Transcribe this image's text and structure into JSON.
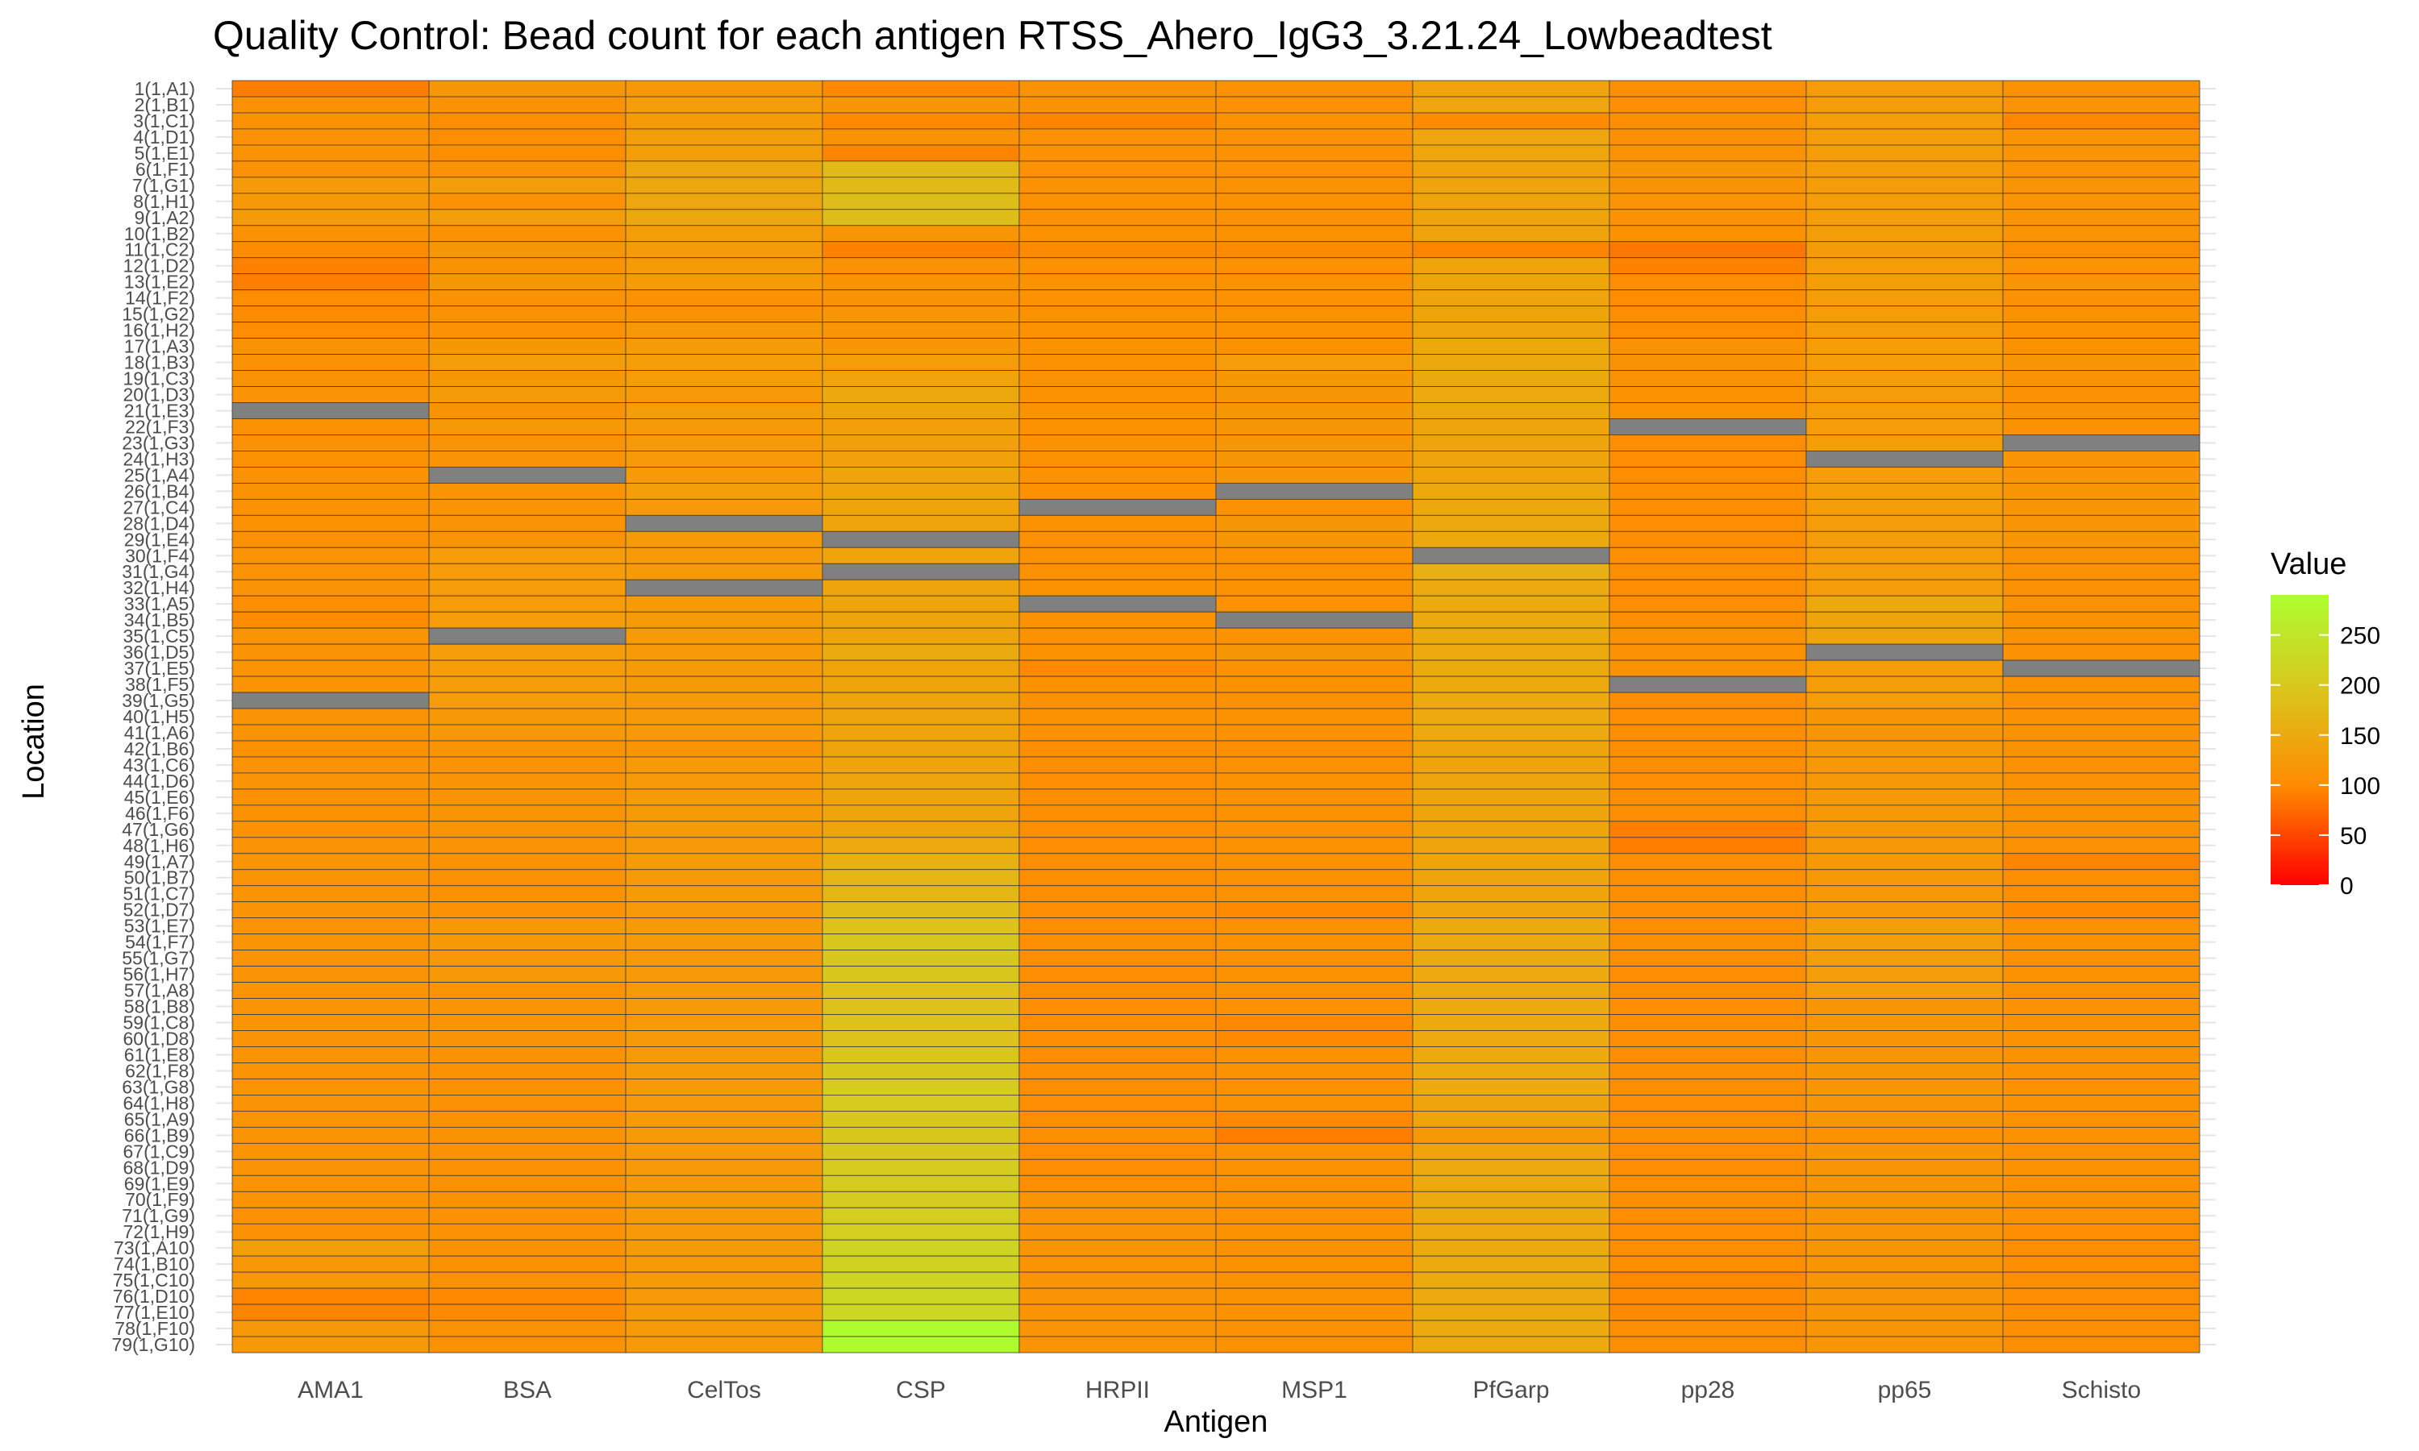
{
  "chart_data": {
    "type": "heatmap",
    "title": "Quality Control: Bead count for each antigen RTSS_Ahero_IgG3_3.21.24_Lowbeadtest",
    "xlabel": "Antigen",
    "ylabel": "Location",
    "x_categories": [
      "AMA1",
      "BSA",
      "CelTos",
      "CSP",
      "HRPII",
      "MSP1",
      "PfGarp",
      "pp28",
      "pp65",
      "Schisto"
    ],
    "y_categories": [
      "1(1,A1)",
      "2(1,B1)",
      "3(1,C1)",
      "4(1,D1)",
      "5(1,E1)",
      "6(1,F1)",
      "7(1,G1)",
      "8(1,H1)",
      "9(1,A2)",
      "10(1,B2)",
      "11(1,C2)",
      "12(1,D2)",
      "13(1,E2)",
      "14(1,F2)",
      "15(1,G2)",
      "16(1,H2)",
      "17(1,A3)",
      "18(1,B3)",
      "19(1,C3)",
      "20(1,D3)",
      "21(1,E3)",
      "22(1,F3)",
      "23(1,G3)",
      "24(1,H3)",
      "25(1,A4)",
      "26(1,B4)",
      "27(1,C4)",
      "28(1,D4)",
      "29(1,E4)",
      "30(1,F4)",
      "31(1,G4)",
      "32(1,H4)",
      "33(1,A5)",
      "34(1,B5)",
      "35(1,C5)",
      "36(1,D5)",
      "37(1,E5)",
      "38(1,F5)",
      "39(1,G5)",
      "40(1,H5)",
      "41(1,A6)",
      "42(1,B6)",
      "43(1,C6)",
      "44(1,D6)",
      "45(1,E6)",
      "46(1,F6)",
      "47(1,G6)",
      "48(1,H6)",
      "49(1,A7)",
      "50(1,B7)",
      "51(1,C7)",
      "52(1,D7)",
      "53(1,E7)",
      "54(1,F7)",
      "55(1,G7)",
      "56(1,H7)",
      "57(1,A8)",
      "58(1,B8)",
      "59(1,C8)",
      "60(1,D8)",
      "61(1,E8)",
      "62(1,F8)",
      "63(1,G8)",
      "64(1,H8)",
      "65(1,A9)",
      "66(1,B9)",
      "67(1,C9)",
      "68(1,D9)",
      "69(1,E9)",
      "70(1,F9)",
      "71(1,G9)",
      "72(1,H9)",
      "73(1,A10)",
      "74(1,B10)",
      "75(1,C10)",
      "76(1,D10)",
      "77(1,E10)",
      "78(1,F10)",
      "79(1,G10)"
    ],
    "values": [
      [
        90,
        118,
        120,
        98,
        112,
        108,
        138,
        105,
        128,
        108
      ],
      [
        110,
        110,
        128,
        118,
        112,
        108,
        142,
        105,
        128,
        114
      ],
      [
        110,
        103,
        124,
        98,
        95,
        108,
        100,
        105,
        128,
        96
      ],
      [
        110,
        103,
        130,
        112,
        108,
        108,
        142,
        105,
        128,
        114
      ],
      [
        110,
        103,
        130,
        95,
        108,
        108,
        142,
        110,
        128,
        114
      ],
      [
        110,
        110,
        145,
        175,
        108,
        108,
        138,
        118,
        128,
        114
      ],
      [
        125,
        130,
        145,
        175,
        108,
        108,
        140,
        112,
        128,
        114
      ],
      [
        122,
        110,
        145,
        182,
        108,
        108,
        140,
        115,
        128,
        114
      ],
      [
        125,
        130,
        145,
        182,
        108,
        108,
        140,
        108,
        128,
        114
      ],
      [
        110,
        110,
        130,
        116,
        108,
        108,
        140,
        108,
        128,
        114
      ],
      [
        100,
        118,
        124,
        92,
        98,
        98,
        95,
        85,
        125,
        104
      ],
      [
        92,
        110,
        124,
        112,
        108,
        108,
        140,
        92,
        128,
        114
      ],
      [
        90,
        118,
        124,
        112,
        108,
        108,
        140,
        102,
        128,
        114
      ],
      [
        104,
        110,
        110,
        112,
        108,
        108,
        140,
        102,
        128,
        110
      ],
      [
        100,
        110,
        110,
        116,
        108,
        108,
        140,
        102,
        128,
        108
      ],
      [
        104,
        110,
        120,
        116,
        108,
        108,
        140,
        102,
        128,
        108
      ],
      [
        110,
        118,
        124,
        116,
        108,
        108,
        146,
        110,
        128,
        108
      ],
      [
        110,
        130,
        130,
        128,
        108,
        126,
        146,
        112,
        128,
        116
      ],
      [
        110,
        118,
        128,
        138,
        108,
        118,
        148,
        110,
        128,
        110
      ],
      [
        114,
        125,
        124,
        146,
        108,
        118,
        150,
        108,
        128,
        110
      ],
      [
        null,
        110,
        128,
        140,
        108,
        118,
        146,
        108,
        128,
        110
      ],
      [
        110,
        120,
        124,
        132,
        108,
        118,
        140,
        null,
        128,
        110
      ],
      [
        110,
        114,
        124,
        132,
        108,
        118,
        140,
        104,
        128,
        null
      ],
      [
        108,
        114,
        124,
        136,
        108,
        118,
        140,
        104,
        null,
        116
      ],
      [
        110,
        null,
        124,
        140,
        108,
        118,
        140,
        104,
        128,
        116
      ],
      [
        110,
        114,
        128,
        140,
        108,
        null,
        146,
        104,
        128,
        116
      ],
      [
        108,
        114,
        124,
        140,
        null,
        108,
        146,
        104,
        128,
        116
      ],
      [
        108,
        114,
        null,
        140,
        108,
        118,
        148,
        104,
        128,
        116
      ],
      [
        108,
        114,
        124,
        null,
        108,
        118,
        148,
        104,
        128,
        116
      ],
      [
        114,
        126,
        124,
        140,
        108,
        108,
        null,
        104,
        128,
        110
      ],
      [
        114,
        126,
        124,
        null,
        108,
        108,
        160,
        104,
        128,
        110
      ],
      [
        114,
        126,
        null,
        140,
        108,
        108,
        150,
        104,
        128,
        110
      ],
      [
        104,
        126,
        124,
        140,
        null,
        108,
        150,
        104,
        148,
        110
      ],
      [
        100,
        126,
        124,
        140,
        108,
        null,
        150,
        104,
        140,
        108
      ],
      [
        114,
        null,
        124,
        140,
        108,
        108,
        150,
        110,
        140,
        110
      ],
      [
        114,
        126,
        124,
        152,
        108,
        118,
        150,
        110,
        null,
        110
      ],
      [
        114,
        126,
        124,
        140,
        98,
        108,
        150,
        110,
        128,
        null
      ],
      [
        114,
        126,
        124,
        140,
        108,
        108,
        150,
        null,
        128,
        110
      ],
      [
        null,
        126,
        124,
        140,
        108,
        108,
        150,
        104,
        128,
        110
      ],
      [
        114,
        120,
        124,
        140,
        108,
        108,
        150,
        104,
        116,
        110
      ],
      [
        114,
        120,
        124,
        140,
        108,
        108,
        150,
        104,
        116,
        110
      ],
      [
        108,
        114,
        114,
        140,
        104,
        104,
        140,
        104,
        120,
        110
      ],
      [
        114,
        114,
        124,
        140,
        104,
        108,
        140,
        104,
        120,
        110
      ],
      [
        114,
        114,
        124,
        140,
        104,
        108,
        140,
        104,
        120,
        110
      ],
      [
        108,
        114,
        124,
        140,
        104,
        108,
        140,
        104,
        120,
        110
      ],
      [
        108,
        114,
        124,
        140,
        104,
        108,
        140,
        104,
        120,
        110
      ],
      [
        108,
        114,
        124,
        140,
        104,
        108,
        140,
        90,
        120,
        110
      ],
      [
        114,
        114,
        124,
        150,
        104,
        108,
        140,
        90,
        120,
        110
      ],
      [
        114,
        110,
        124,
        160,
        104,
        108,
        140,
        104,
        120,
        94
      ],
      [
        114,
        110,
        124,
        170,
        104,
        108,
        140,
        104,
        120,
        104
      ],
      [
        114,
        110,
        124,
        170,
        104,
        108,
        140,
        104,
        120,
        104
      ],
      [
        114,
        110,
        124,
        180,
        104,
        98,
        140,
        104,
        120,
        98
      ],
      [
        114,
        120,
        124,
        190,
        104,
        108,
        150,
        104,
        130,
        108
      ],
      [
        114,
        120,
        124,
        200,
        104,
        108,
        150,
        104,
        130,
        108
      ],
      [
        114,
        120,
        124,
        200,
        104,
        108,
        150,
        104,
        130,
        108
      ],
      [
        114,
        120,
        124,
        200,
        104,
        108,
        150,
        104,
        130,
        108
      ],
      [
        114,
        114,
        124,
        190,
        104,
        108,
        150,
        104,
        130,
        108
      ],
      [
        114,
        114,
        124,
        190,
        104,
        108,
        150,
        104,
        116,
        108
      ],
      [
        114,
        114,
        124,
        190,
        104,
        98,
        150,
        104,
        116,
        108
      ],
      [
        114,
        114,
        124,
        190,
        104,
        98,
        150,
        104,
        116,
        108
      ],
      [
        114,
        110,
        124,
        195,
        104,
        108,
        150,
        104,
        116,
        108
      ],
      [
        114,
        110,
        124,
        200,
        104,
        108,
        150,
        104,
        116,
        108
      ],
      [
        114,
        110,
        124,
        205,
        104,
        108,
        150,
        104,
        116,
        108
      ],
      [
        114,
        110,
        124,
        205,
        104,
        108,
        140,
        104,
        116,
        108
      ],
      [
        114,
        110,
        124,
        200,
        104,
        98,
        140,
        104,
        116,
        108
      ],
      [
        114,
        110,
        124,
        200,
        104,
        90,
        120,
        104,
        108,
        108
      ],
      [
        114,
        110,
        124,
        200,
        104,
        108,
        140,
        104,
        116,
        108
      ],
      [
        114,
        110,
        124,
        205,
        104,
        108,
        150,
        104,
        116,
        108
      ],
      [
        114,
        110,
        124,
        205,
        104,
        108,
        150,
        104,
        116,
        108
      ],
      [
        114,
        110,
        124,
        205,
        114,
        108,
        150,
        104,
        116,
        108
      ],
      [
        110,
        110,
        124,
        210,
        114,
        108,
        150,
        104,
        116,
        108
      ],
      [
        110,
        110,
        124,
        210,
        114,
        108,
        150,
        104,
        116,
        104
      ],
      [
        130,
        110,
        124,
        220,
        114,
        108,
        150,
        104,
        116,
        104
      ],
      [
        120,
        110,
        124,
        215,
        114,
        108,
        150,
        104,
        116,
        104
      ],
      [
        120,
        110,
        124,
        220,
        114,
        108,
        150,
        98,
        116,
        104
      ],
      [
        95,
        98,
        124,
        225,
        114,
        108,
        150,
        98,
        116,
        104
      ],
      [
        95,
        98,
        124,
        225,
        114,
        108,
        150,
        98,
        116,
        104
      ],
      [
        120,
        110,
        124,
        285,
        114,
        108,
        150,
        104,
        116,
        104
      ],
      [
        120,
        110,
        124,
        285,
        114,
        108,
        150,
        104,
        116,
        104
      ]
    ],
    "missing_color": "#808080",
    "legend": {
      "title": "Value",
      "ticks": [
        0,
        50,
        100,
        150,
        200,
        250
      ],
      "range": [
        0,
        290
      ],
      "placement": "right"
    },
    "color_scale": {
      "low": "#ff0000",
      "mid": "#ff8c00",
      "high_mid": "#d8c81e",
      "high": "#adff2f"
    },
    "grid": true
  }
}
